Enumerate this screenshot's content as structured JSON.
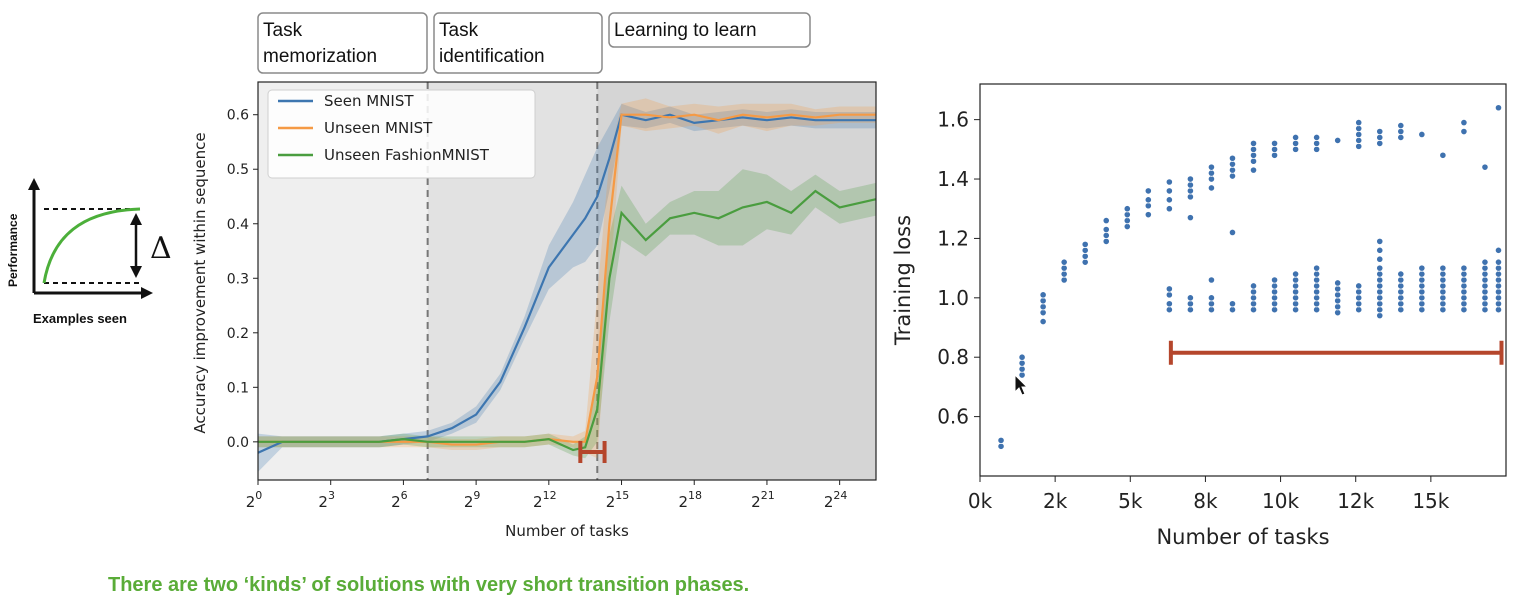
{
  "slide": {
    "caption": "There are two ‘kinds’ of solutions with very short transition phases."
  },
  "inset": {
    "ylabel": "Performance",
    "xlabel": "Examples seen",
    "delta": "Δ",
    "curve_color": "#4caf3a"
  },
  "phases": [
    {
      "label_lines": [
        "Task",
        "memorization"
      ],
      "from_exp": 0,
      "to_exp": 7
    },
    {
      "label_lines": [
        "Task",
        "identification"
      ],
      "from_exp": 7,
      "to_exp": 14
    },
    {
      "label_lines": [
        "Learning to learn"
      ],
      "from_exp": 14,
      "to_exp": 25.5
    }
  ],
  "colors": {
    "seen": "#3d76b0",
    "unseen": "#f59a45",
    "fashion": "#4a9d3f",
    "bracket": "#b5462c",
    "scatter": "#3f72af"
  },
  "chart_data": [
    {
      "type": "line",
      "title": "",
      "xlabel": "Number of tasks",
      "ylabel": "Accuracy improvement within sequence",
      "x_scale": "log2",
      "xlim_exp": [
        0,
        25.5
      ],
      "ylim": [
        -0.07,
        0.66
      ],
      "x_ticks": [
        {
          "base": "2",
          "exp": "0",
          "e": 0
        },
        {
          "base": "2",
          "exp": "3",
          "e": 3
        },
        {
          "base": "2",
          "exp": "6",
          "e": 6
        },
        {
          "base": "2",
          "exp": "9",
          "e": 9
        },
        {
          "base": "2",
          "exp": "12",
          "e": 12
        },
        {
          "base": "2",
          "exp": "15",
          "e": 15
        },
        {
          "base": "2",
          "exp": "18",
          "e": 18
        },
        {
          "base": "2",
          "exp": "21",
          "e": 21
        },
        {
          "base": "2",
          "exp": "24",
          "e": 24
        }
      ],
      "y_ticks": [
        "0.0",
        "0.1",
        "0.2",
        "0.3",
        "0.4",
        "0.5",
        "0.6"
      ],
      "y_tick_values": [
        0,
        0.1,
        0.2,
        0.3,
        0.4,
        0.5,
        0.6
      ],
      "phase_boundaries_exp": [
        7,
        14
      ],
      "transition_bracket_exp": [
        13.3,
        14.3
      ],
      "legend_position": "upper-left",
      "x_exp": [
        0,
        1,
        2,
        3,
        4,
        5,
        6,
        7,
        8,
        9,
        10,
        11,
        12,
        13,
        13.5,
        14,
        14.5,
        15,
        16,
        17,
        18,
        19,
        20,
        21,
        22,
        23,
        24,
        25,
        25.5
      ],
      "series": [
        {
          "name": "Seen MNIST",
          "color_key": "seen",
          "values": [
            -0.02,
            0.0,
            0.0,
            0.0,
            0.0,
            0.0,
            0.005,
            0.01,
            0.025,
            0.05,
            0.11,
            0.21,
            0.32,
            0.38,
            0.41,
            0.45,
            0.52,
            0.6,
            0.59,
            0.6,
            0.585,
            0.59,
            0.595,
            0.59,
            0.595,
            0.59,
            0.59,
            0.59,
            0.59
          ],
          "band": [
            0.035,
            0.01,
            0.01,
            0.01,
            0.01,
            0.01,
            0.01,
            0.01,
            0.01,
            0.015,
            0.015,
            0.02,
            0.04,
            0.06,
            0.08,
            0.09,
            0.06,
            0.02,
            0.015,
            0.015,
            0.015,
            0.015,
            0.015,
            0.015,
            0.015,
            0.015,
            0.015,
            0.015,
            0.015
          ]
        },
        {
          "name": "Unseen MNIST",
          "color_key": "unseen",
          "values": [
            0.0,
            0.0,
            0.0,
            0.0,
            0.0,
            0.0,
            0.0,
            0.0,
            -0.005,
            -0.005,
            0.0,
            0.0,
            0.005,
            0.0,
            0.0,
            0.12,
            0.4,
            0.6,
            0.6,
            0.595,
            0.6,
            0.59,
            0.6,
            0.595,
            0.6,
            0.595,
            0.6,
            0.6,
            0.6
          ],
          "band": [
            0.01,
            0.01,
            0.01,
            0.01,
            0.01,
            0.01,
            0.01,
            0.01,
            0.01,
            0.01,
            0.01,
            0.01,
            0.01,
            0.01,
            0.02,
            0.15,
            0.12,
            0.02,
            0.03,
            0.02,
            0.02,
            0.025,
            0.02,
            0.025,
            0.02,
            0.015,
            0.015,
            0.015,
            0.015
          ]
        },
        {
          "name": "Unseen FashionMNIST",
          "color_key": "fashion",
          "values": [
            0.0,
            0.0,
            0.0,
            0.0,
            0.0,
            0.0,
            0.005,
            0.0,
            0.0,
            0.0,
            0.0,
            0.0,
            0.005,
            -0.015,
            -0.01,
            0.06,
            0.3,
            0.42,
            0.37,
            0.41,
            0.42,
            0.41,
            0.43,
            0.44,
            0.42,
            0.46,
            0.43,
            0.44,
            0.445
          ],
          "band": [
            0.01,
            0.01,
            0.01,
            0.01,
            0.01,
            0.01,
            0.01,
            0.01,
            0.01,
            0.01,
            0.01,
            0.01,
            0.01,
            0.01,
            0.02,
            0.06,
            0.08,
            0.05,
            0.03,
            0.03,
            0.04,
            0.05,
            0.07,
            0.05,
            0.04,
            0.03,
            0.03,
            0.03,
            0.03
          ]
        }
      ]
    },
    {
      "type": "scatter",
      "title": "",
      "xlabel": "Number of tasks",
      "ylabel": "Training loss",
      "xlim": [
        0,
        17500
      ],
      "ylim": [
        0.4,
        1.72
      ],
      "x_ticks": [
        "0k",
        "2k",
        "5k",
        "8k",
        "10k",
        "12k",
        "15k"
      ],
      "x_tick_values": [
        0,
        2500,
        5000,
        7500,
        10000,
        12500,
        15000
      ],
      "y_ticks": [
        "0.6",
        "0.8",
        "1.0",
        "1.2",
        "1.4",
        "1.6"
      ],
      "y_tick_values": [
        0.6,
        0.8,
        1.0,
        1.2,
        1.4,
        1.6
      ],
      "transition_bracket_x": [
        6350,
        17350
      ],
      "transition_bracket_y": 0.815,
      "upper_branch": [
        {
          "x": 700,
          "y": [
            0.5,
            0.52
          ]
        },
        {
          "x": 1400,
          "y": [
            0.74,
            0.76,
            0.78,
            0.8
          ]
        },
        {
          "x": 2100,
          "y": [
            0.92,
            0.95,
            0.97,
            0.99,
            1.01
          ]
        },
        {
          "x": 2800,
          "y": [
            1.06,
            1.08,
            1.1,
            1.12
          ]
        },
        {
          "x": 3500,
          "y": [
            1.12,
            1.14,
            1.16,
            1.18
          ]
        },
        {
          "x": 4200,
          "y": [
            1.19,
            1.21,
            1.23,
            1.26
          ]
        },
        {
          "x": 4900,
          "y": [
            1.24,
            1.26,
            1.28,
            1.3
          ]
        },
        {
          "x": 5600,
          "y": [
            1.28,
            1.31,
            1.33,
            1.36
          ]
        },
        {
          "x": 6300,
          "y": [
            1.3,
            1.33,
            1.36,
            1.39
          ]
        },
        {
          "x": 7000,
          "y": [
            1.34,
            1.36,
            1.38,
            1.4
          ]
        },
        {
          "x": 7700,
          "y": [
            1.37,
            1.4,
            1.42,
            1.44
          ]
        },
        {
          "x": 8400,
          "y": [
            1.41,
            1.43,
            1.45,
            1.47
          ]
        },
        {
          "x": 9100,
          "y": [
            1.43,
            1.46,
            1.48,
            1.5,
            1.52
          ]
        },
        {
          "x": 9800,
          "y": [
            1.48,
            1.5,
            1.52
          ]
        },
        {
          "x": 10500,
          "y": [
            1.5,
            1.52,
            1.54
          ]
        },
        {
          "x": 11200,
          "y": [
            1.5,
            1.52,
            1.54
          ]
        },
        {
          "x": 11900,
          "y": [
            1.53
          ]
        },
        {
          "x": 12600,
          "y": [
            1.51,
            1.53,
            1.55,
            1.57,
            1.59
          ]
        },
        {
          "x": 13300,
          "y": [
            1.52,
            1.54,
            1.56
          ]
        },
        {
          "x": 14000,
          "y": [
            1.54,
            1.56,
            1.58
          ]
        },
        {
          "x": 14700,
          "y": [
            1.55
          ]
        },
        {
          "x": 16100,
          "y": [
            1.56,
            1.59
          ]
        },
        {
          "x": 17250,
          "y": [
            1.64
          ]
        }
      ],
      "lower_branch": [
        {
          "x": 6300,
          "y": [
            0.96,
            0.98,
            1.01,
            1.03
          ]
        },
        {
          "x": 7000,
          "y": [
            0.96,
            0.98,
            1.0
          ]
        },
        {
          "x": 7700,
          "y": [
            0.96,
            0.98,
            1.0
          ]
        },
        {
          "x": 8400,
          "y": [
            0.96,
            0.98
          ]
        },
        {
          "x": 9100,
          "y": [
            0.96,
            0.98,
            1.0,
            1.02,
            1.04
          ]
        },
        {
          "x": 9800,
          "y": [
            0.96,
            0.98,
            1.0,
            1.02,
            1.04,
            1.06
          ]
        },
        {
          "x": 10500,
          "y": [
            0.96,
            0.98,
            1.0,
            1.02,
            1.04,
            1.06,
            1.08
          ]
        },
        {
          "x": 11200,
          "y": [
            0.96,
            0.98,
            1.0,
            1.02,
            1.04,
            1.06,
            1.08,
            1.1
          ]
        },
        {
          "x": 11900,
          "y": [
            0.95,
            0.97,
            0.99,
            1.01,
            1.03,
            1.05
          ]
        },
        {
          "x": 12600,
          "y": [
            0.96,
            0.98,
            1.0,
            1.02,
            1.04
          ]
        },
        {
          "x": 13300,
          "y": [
            0.94,
            0.96,
            0.98,
            1.0,
            1.02,
            1.04,
            1.06,
            1.08,
            1.1,
            1.13,
            1.16,
            1.19
          ]
        },
        {
          "x": 14000,
          "y": [
            0.96,
            0.98,
            1.0,
            1.02,
            1.04,
            1.06,
            1.08
          ]
        },
        {
          "x": 14700,
          "y": [
            0.96,
            0.98,
            1.0,
            1.02,
            1.04,
            1.06,
            1.08,
            1.1
          ]
        },
        {
          "x": 15400,
          "y": [
            0.96,
            0.98,
            1.0,
            1.02,
            1.04,
            1.06,
            1.08,
            1.1
          ]
        },
        {
          "x": 16100,
          "y": [
            0.96,
            0.98,
            1.0,
            1.02,
            1.04,
            1.06,
            1.08,
            1.1
          ]
        },
        {
          "x": 16800,
          "y": [
            0.96,
            0.98,
            1.0,
            1.02,
            1.04,
            1.06,
            1.08,
            1.1,
            1.12
          ]
        },
        {
          "x": 17250,
          "y": [
            0.96,
            0.98,
            1.0,
            1.02,
            1.04,
            1.06,
            1.08,
            1.1,
            1.12,
            1.16
          ]
        }
      ],
      "outliers": [
        {
          "x": 7000,
          "y": 1.27
        },
        {
          "x": 7700,
          "y": 1.06
        },
        {
          "x": 8400,
          "y": 1.22
        },
        {
          "x": 15400,
          "y": 1.48
        },
        {
          "x": 16800,
          "y": 1.44
        }
      ]
    }
  ]
}
